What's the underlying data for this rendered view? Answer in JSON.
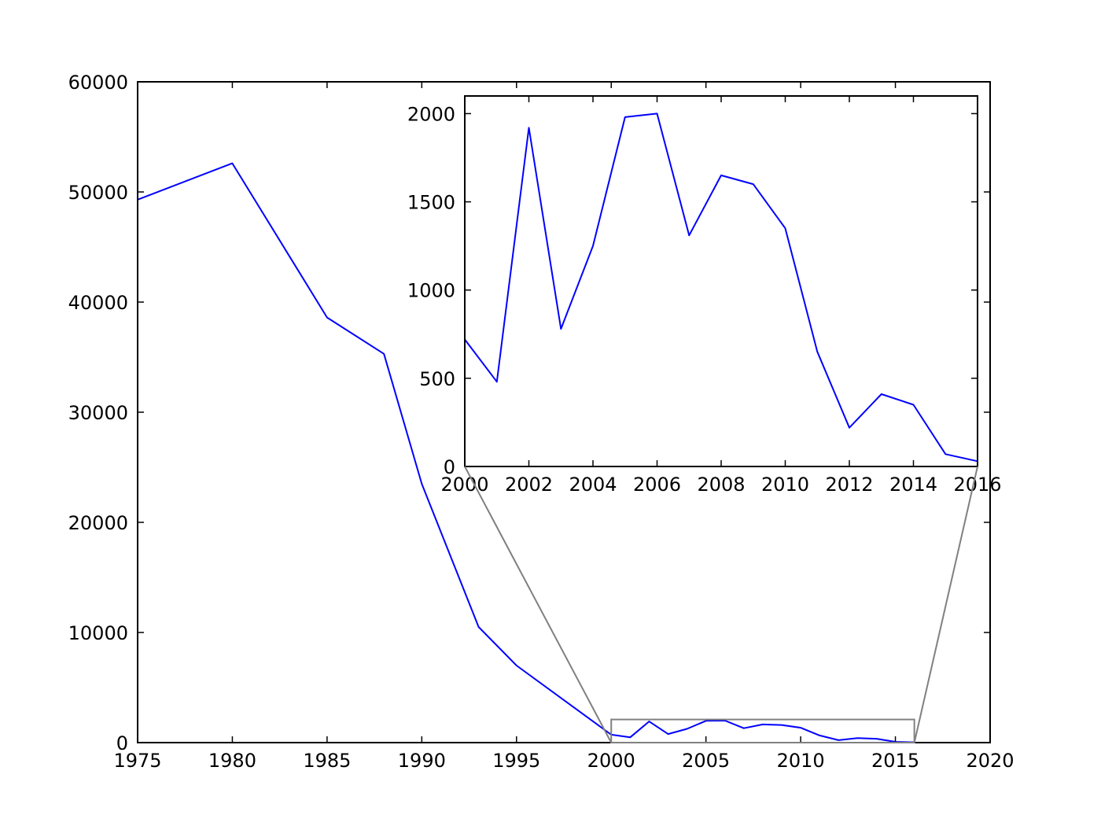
{
  "chart_data": [
    {
      "type": "line",
      "title": "",
      "xlabel": "",
      "ylabel": "",
      "xlim": [
        1975,
        2020
      ],
      "ylim": [
        0,
        60000
      ],
      "xticks": [
        1975,
        1980,
        1985,
        1990,
        1995,
        2000,
        2005,
        2010,
        2015,
        2020
      ],
      "yticks": [
        0,
        10000,
        20000,
        30000,
        40000,
        50000,
        60000
      ],
      "grid": false,
      "series": [
        {
          "color": "#0000ff",
          "x": [
            1975,
            1980,
            1985,
            1988,
            1990,
            1993,
            1995,
            2000,
            2001,
            2002,
            2003,
            2004,
            2005,
            2006,
            2007,
            2008,
            2009,
            2010,
            2011,
            2012,
            2013,
            2014,
            2015,
            2016
          ],
          "y": [
            49300,
            52600,
            38600,
            35300,
            23500,
            10500,
            7000,
            720,
            480,
            1920,
            780,
            1250,
            1980,
            2000,
            1310,
            1650,
            1600,
            1350,
            650,
            220,
            410,
            350,
            70,
            30
          ]
        }
      ],
      "zoom_region": {
        "xlim": [
          2000,
          2016
        ],
        "ylim": [
          0,
          2100
        ]
      }
    },
    {
      "type": "line",
      "title": "",
      "xlabel": "",
      "ylabel": "",
      "xlim": [
        2000,
        2016
      ],
      "ylim": [
        0,
        2100
      ],
      "xticks": [
        2000,
        2002,
        2004,
        2006,
        2008,
        2010,
        2012,
        2014,
        2016
      ],
      "yticks": [
        0,
        500,
        1000,
        1500,
        2000
      ],
      "grid": false,
      "series": [
        {
          "color": "#0000ff",
          "x": [
            2000,
            2001,
            2002,
            2003,
            2004,
            2005,
            2006,
            2007,
            2008,
            2009,
            2010,
            2011,
            2012,
            2013,
            2014,
            2015,
            2016
          ],
          "y": [
            720,
            480,
            1920,
            780,
            1250,
            1980,
            2000,
            1310,
            1650,
            1600,
            1350,
            650,
            220,
            410,
            350,
            70,
            30
          ]
        }
      ]
    }
  ]
}
